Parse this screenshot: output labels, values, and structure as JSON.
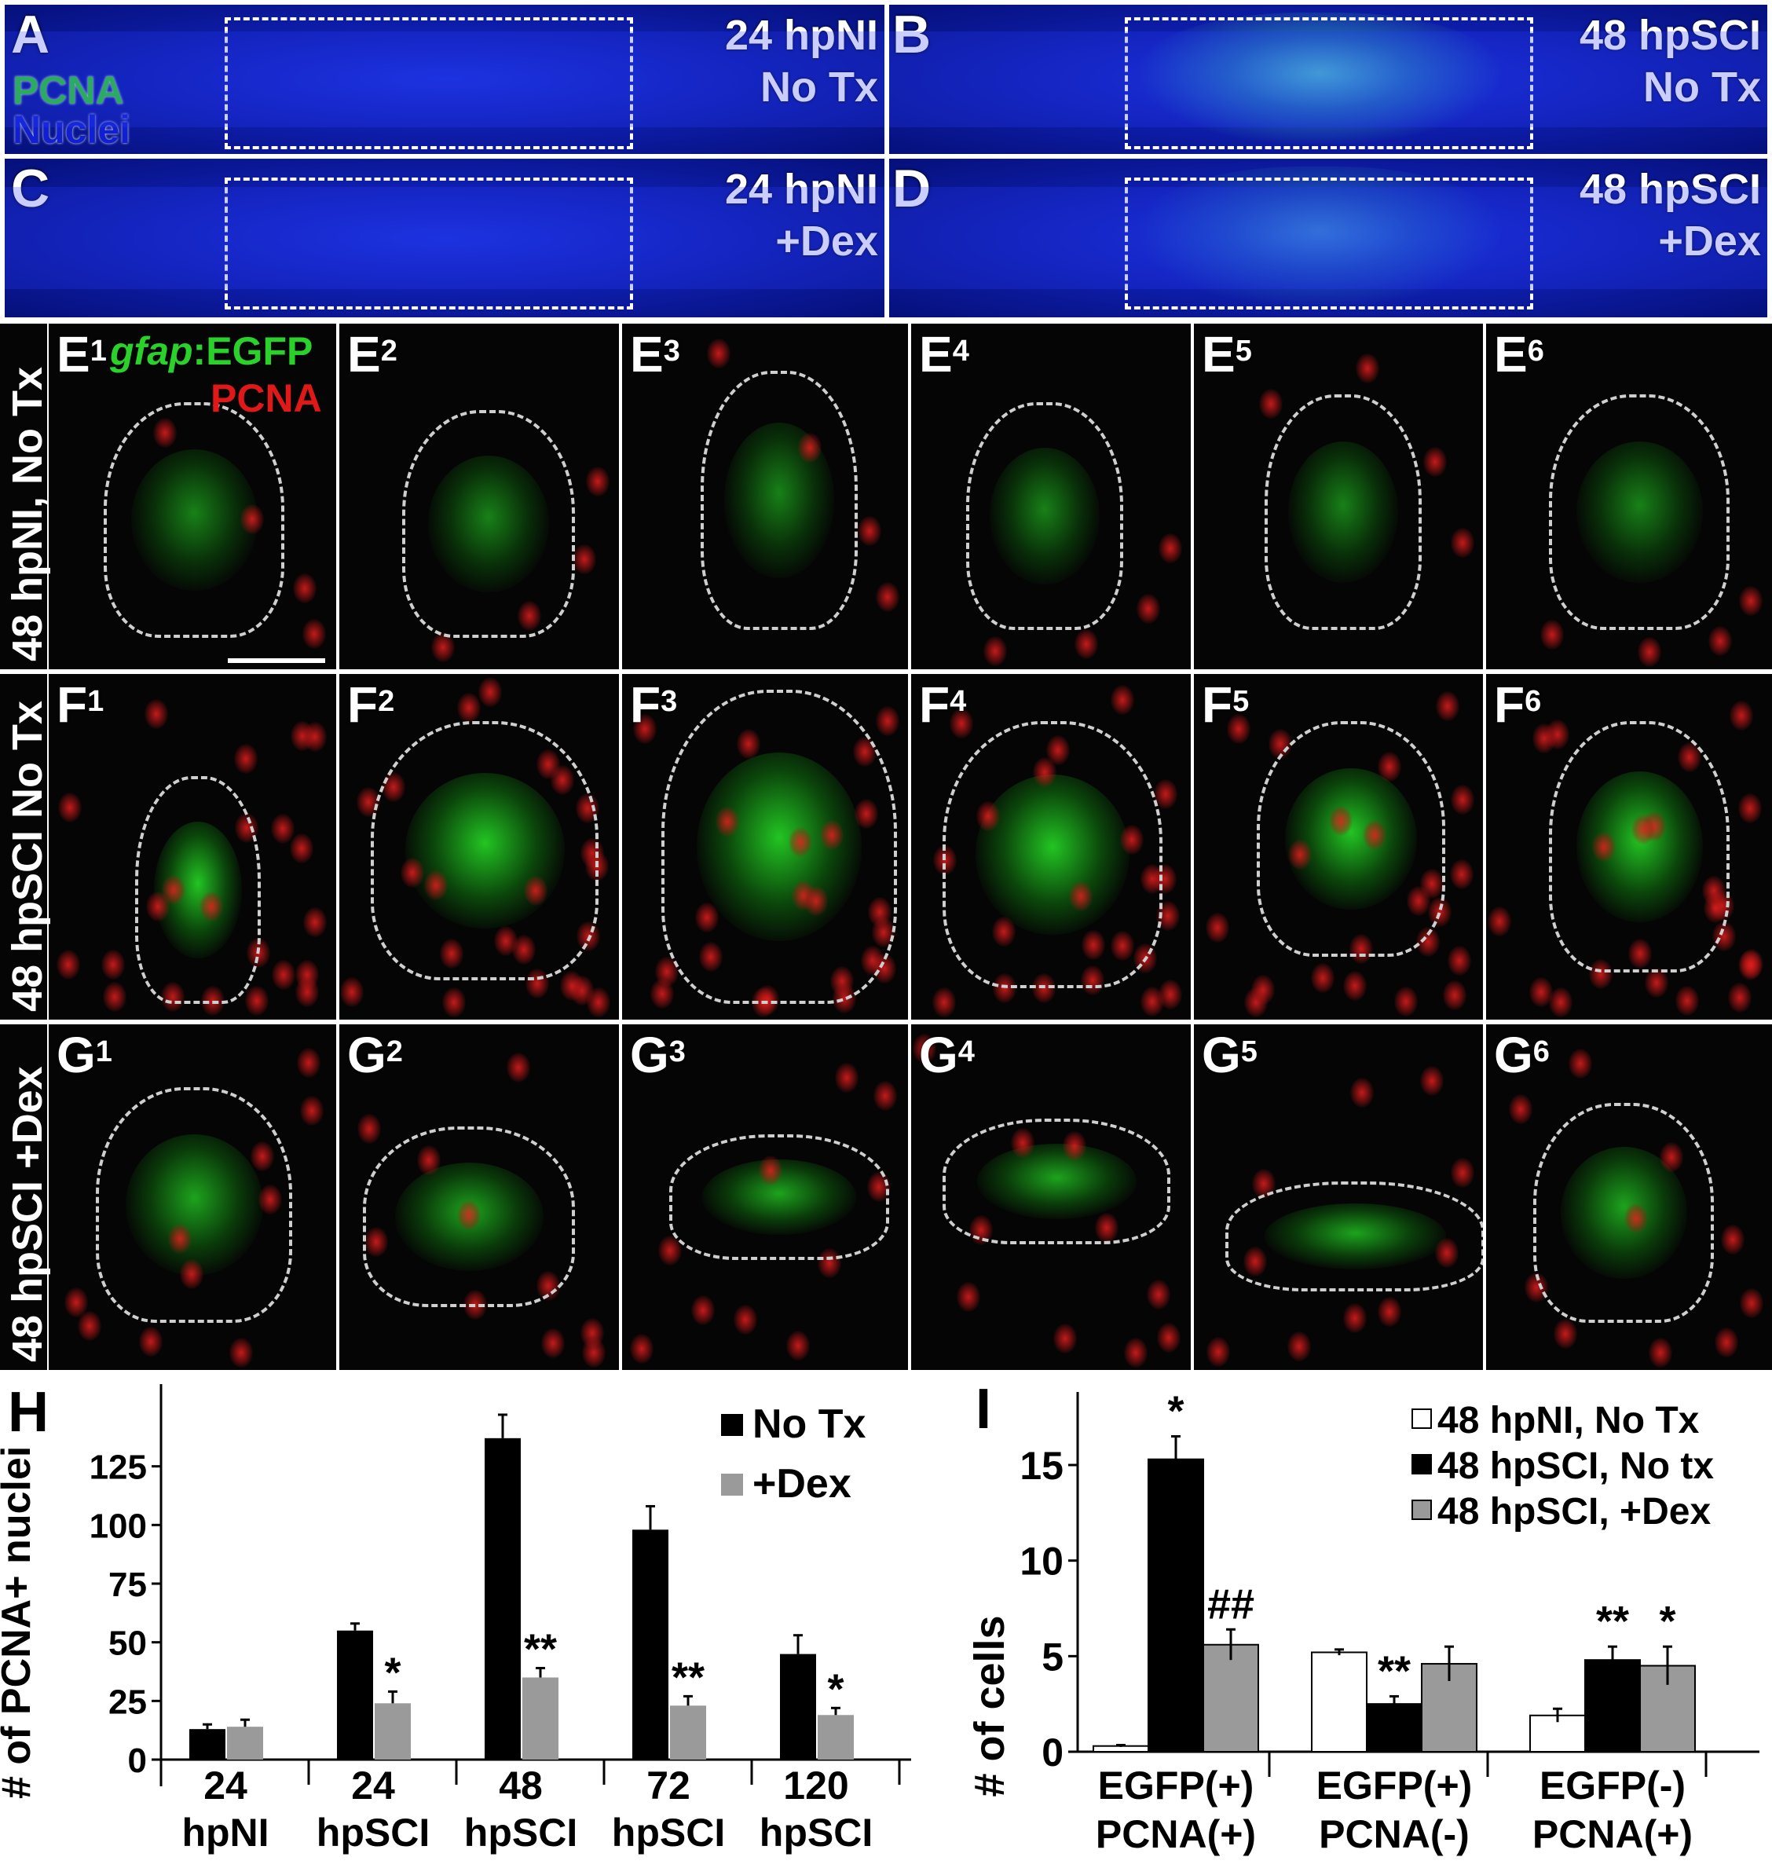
{
  "top_panels": [
    {
      "letter": "A",
      "line1": "24 hpNI",
      "line2": "No Tx",
      "extra_label1": "PCNA",
      "extra_label2": "Nuclei"
    },
    {
      "letter": "B",
      "line1": "48 hpSCI",
      "line2": "No Tx"
    },
    {
      "letter": "C",
      "line1": "24 hpNI",
      "line2": "+Dex"
    },
    {
      "letter": "D",
      "line1": "48 hpSCI",
      "line2": "+Dex"
    }
  ],
  "grid": {
    "row_labels": [
      "48 hpNI, No Tx",
      "48 hpSCI No Tx",
      "48 hpSCI +Dex"
    ],
    "row_letters": [
      "E",
      "F",
      "G"
    ],
    "col_indices": [
      "1",
      "2",
      "3",
      "4",
      "5",
      "6"
    ],
    "legend_gfap": "gfap",
    "legend_egfp": ":EGFP",
    "legend_pcna": "PCNA"
  },
  "colors": {
    "green": "#2bd12b",
    "red": "#e01818",
    "blue": "#1020d0",
    "dark_bar": "#000000",
    "gray_bar": "#9a9a9a"
  },
  "chart_data": [
    {
      "panel": "H",
      "type": "bar",
      "ylabel": "# of PCNA+ nuclei",
      "categories": [
        [
          "24",
          "hpNI"
        ],
        [
          "24",
          "hpSCI"
        ],
        [
          "48",
          "hpSCI"
        ],
        [
          "72",
          "hpSCI"
        ],
        [
          "120",
          "hpSCI"
        ]
      ],
      "series": [
        {
          "name": "No Tx",
          "values": [
            13,
            55,
            137,
            98,
            45
          ],
          "errors": [
            2,
            3,
            10,
            10,
            8
          ]
        },
        {
          "name": "+Dex",
          "values": [
            14,
            24,
            35,
            23,
            19
          ],
          "errors": [
            3,
            5,
            4,
            4,
            3
          ]
        }
      ],
      "annotations": [
        "",
        "*",
        "**",
        "**",
        "*"
      ],
      "yticks": [
        "0",
        "25",
        "50",
        "75",
        "100",
        "125"
      ],
      "ylim": [
        0,
        150
      ]
    },
    {
      "panel": "I",
      "type": "bar",
      "ylabel": "# of cells",
      "categories": [
        [
          "EGFP(+)",
          "PCNA(+)"
        ],
        [
          "EGFP(+)",
          "PCNA(-)"
        ],
        [
          "EGFP(-)",
          "PCNA(+)"
        ]
      ],
      "series": [
        {
          "name": "48 hpNI, No Tx",
          "values": [
            0.3,
            5.2,
            1.9
          ],
          "errors": [
            0.05,
            0.15,
            0.35
          ]
        },
        {
          "name": "48 hpSCI, No tx",
          "values": [
            15.3,
            2.5,
            4.8
          ],
          "errors": [
            1.2,
            0.4,
            0.7
          ]
        },
        {
          "name": "48 hpSCI, +Dex",
          "values": [
            5.6,
            4.6,
            4.5
          ],
          "errors": [
            0.8,
            0.9,
            1.0
          ]
        }
      ],
      "annotations": [
        [
          "",
          "*",
          "##"
        ],
        [
          "",
          "**",
          ""
        ],
        [
          "",
          "**",
          "*"
        ]
      ],
      "yticks": [
        "0",
        "5",
        "10",
        "15"
      ],
      "ylim": [
        0,
        18
      ]
    }
  ]
}
